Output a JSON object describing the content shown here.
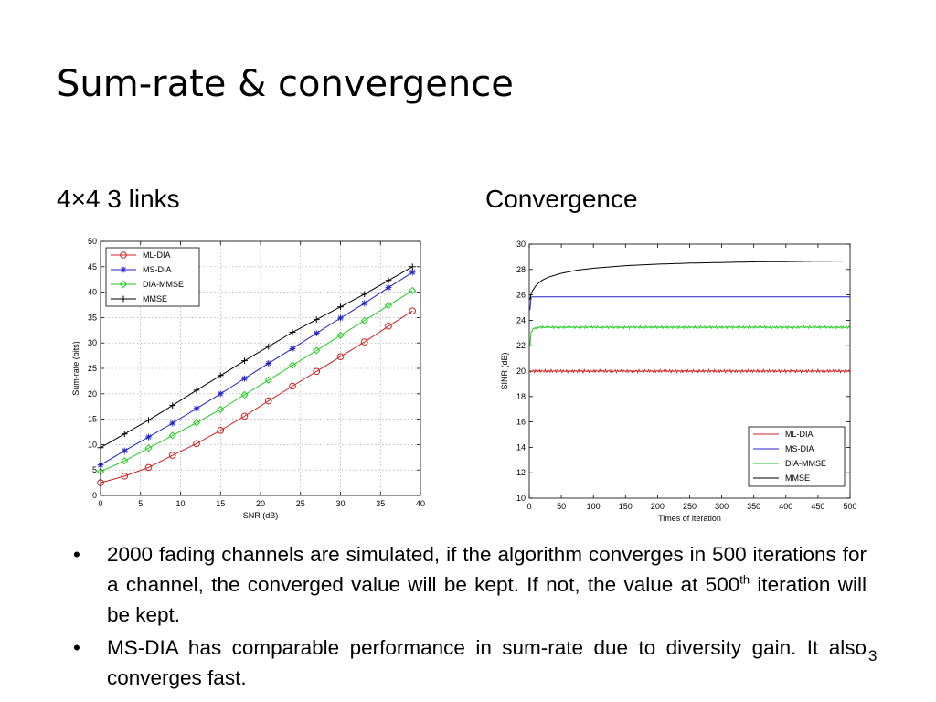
{
  "slide": {
    "title": "Sum-rate & convergence",
    "subtitle_left": "4×4 3 links",
    "subtitle_right": "Convergence",
    "bullets": [
      {
        "symbol": "•",
        "text_before_sup": "2000 fading channels are simulated, if the algorithm converges in 500 iterations for a channel, the converged value will be kept. If not, the value at 500",
        "superscript": "th",
        "text_after_sup": " iteration will be kept."
      },
      {
        "symbol": "•",
        "text": "MS-DIA has comparable performance in sum-rate due to diversity gain. It also converges fast."
      }
    ],
    "page_number": "3"
  },
  "chart_data": [
    {
      "type": "line",
      "title": "",
      "xlabel": "SNR (dB)",
      "ylabel": "Sum-rate (bits)",
      "xlim": [
        0,
        40
      ],
      "ylim": [
        0,
        50
      ],
      "xticks": [
        0,
        5,
        10,
        15,
        20,
        25,
        30,
        35,
        40
      ],
      "yticks": [
        0,
        5,
        10,
        15,
        20,
        25,
        30,
        35,
        40,
        45,
        50
      ],
      "grid": true,
      "legend_position": "top-left",
      "x": [
        0,
        3,
        6,
        9,
        12,
        15,
        18,
        21,
        24,
        27,
        30,
        33,
        36,
        39
      ],
      "series": [
        {
          "name": "ML-DIA",
          "color": "#cc2222",
          "marker": "circle",
          "values": [
            2.5,
            3.8,
            5.5,
            7.9,
            10.2,
            12.8,
            15.6,
            18.6,
            21.5,
            24.4,
            27.3,
            30.2,
            33.3,
            36.3
          ]
        },
        {
          "name": "MS-DIA",
          "color": "#2222cc",
          "marker": "star",
          "values": [
            6.0,
            8.8,
            11.5,
            14.2,
            17.1,
            20.0,
            23.0,
            26.0,
            28.9,
            31.9,
            34.9,
            37.8,
            40.9,
            43.9
          ]
        },
        {
          "name": "DIA-MMSE",
          "color": "#22cc22",
          "marker": "diamond",
          "values": [
            4.7,
            6.8,
            9.3,
            11.8,
            14.3,
            16.9,
            19.8,
            22.7,
            25.6,
            28.5,
            31.5,
            34.4,
            37.4,
            40.3
          ]
        },
        {
          "name": "MMSE",
          "color": "#000000",
          "marker": "plus",
          "values": [
            9.4,
            12.1,
            14.8,
            17.7,
            20.7,
            23.6,
            26.5,
            29.3,
            32.1,
            34.6,
            37.1,
            39.6,
            42.3,
            45.0
          ]
        }
      ]
    },
    {
      "type": "line",
      "title": "",
      "xlabel": "Times of iteration",
      "ylabel": "SINR (dB)",
      "xlim": [
        0,
        500
      ],
      "ylim": [
        10,
        30
      ],
      "xticks": [
        0,
        50,
        100,
        150,
        200,
        250,
        300,
        350,
        400,
        450,
        500
      ],
      "yticks": [
        10,
        12,
        14,
        16,
        18,
        20,
        22,
        24,
        26,
        28,
        30
      ],
      "grid": false,
      "legend_position": "bottom-right",
      "x": [
        1,
        3,
        5,
        10,
        15,
        20,
        30,
        50,
        75,
        100,
        150,
        200,
        250,
        300,
        350,
        400,
        450,
        500
      ],
      "series": [
        {
          "name": "ML-DIA",
          "color": "#cc2222",
          "noise": 0.12,
          "values": [
            19.9,
            20.0,
            20.0,
            20.0,
            20.0,
            20.0,
            20.0,
            20.0,
            20.0,
            20.0,
            20.0,
            20.0,
            20.0,
            20.0,
            20.0,
            20.0,
            20.0,
            20.0
          ]
        },
        {
          "name": "MS-DIA",
          "color": "#2222cc",
          "noise": 0,
          "values": [
            24.8,
            25.8,
            25.85,
            25.85,
            25.85,
            25.85,
            25.85,
            25.85,
            25.85,
            25.85,
            25.85,
            25.85,
            25.85,
            25.85,
            25.85,
            25.85,
            25.85,
            25.85
          ]
        },
        {
          "name": "DIA-MMSE",
          "color": "#22cc22",
          "noise": 0.1,
          "values": [
            22.0,
            23.0,
            23.3,
            23.4,
            23.45,
            23.45,
            23.45,
            23.45,
            23.45,
            23.45,
            23.45,
            23.45,
            23.45,
            23.45,
            23.45,
            23.45,
            23.45,
            23.45
          ]
        },
        {
          "name": "MMSE",
          "color": "#000000",
          "noise": 0,
          "values": [
            25.6,
            26.1,
            26.3,
            26.7,
            26.95,
            27.15,
            27.4,
            27.7,
            27.95,
            28.1,
            28.3,
            28.42,
            28.5,
            28.55,
            28.6,
            28.62,
            28.65,
            28.67
          ]
        }
      ]
    }
  ]
}
